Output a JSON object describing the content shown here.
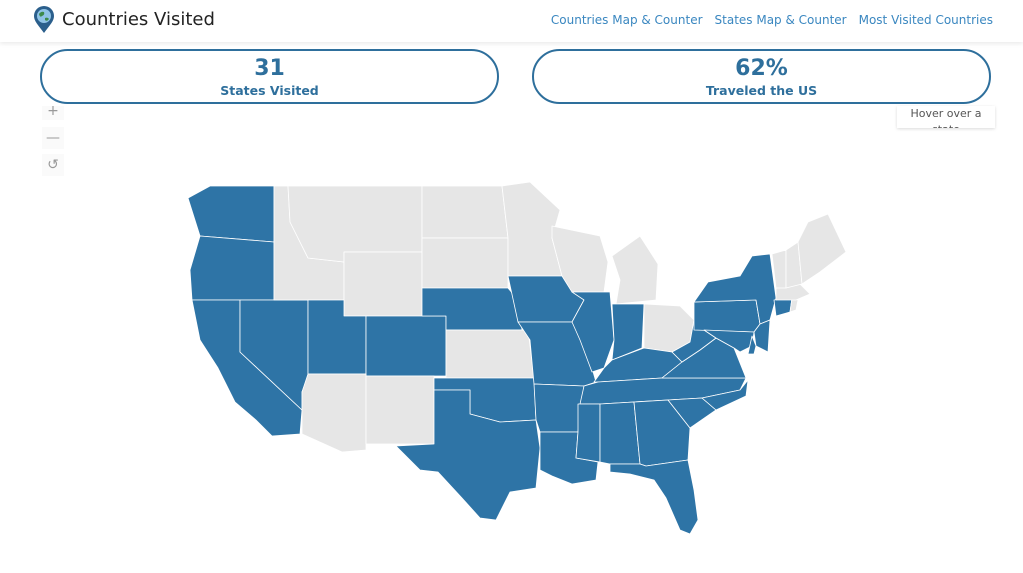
{
  "header": {
    "title": "Countries Visited",
    "nav": [
      "Countries Map & Counter",
      "States Map & Counter",
      "Most Visited Countries"
    ]
  },
  "stats": [
    {
      "value": "31",
      "label": "States Visited"
    },
    {
      "value": "62%",
      "label": "Traveled the US"
    }
  ],
  "map_controls": {
    "zoom_in": "+",
    "zoom_out": "—",
    "reset": "↺"
  },
  "tooltip": "Hover over a state",
  "colors": {
    "visited": "#2e74a6",
    "not_visited": "#e6e6e6",
    "accent": "#2e6f9c",
    "link": "#3a87c0"
  },
  "states": {
    "WA": true,
    "OR": true,
    "CA": true,
    "NV": true,
    "ID": false,
    "MT": false,
    "WY": false,
    "UT": true,
    "CO": true,
    "AZ": false,
    "NM": false,
    "ND": false,
    "SD": false,
    "NE": true,
    "KS": false,
    "OK": true,
    "TX": true,
    "MN": false,
    "IA": true,
    "MO": true,
    "AR": true,
    "LA": true,
    "WI": false,
    "IL": true,
    "MI": false,
    "IN": true,
    "OH": false,
    "KY": true,
    "TN": true,
    "MS": true,
    "AL": true,
    "GA": true,
    "FL": true,
    "SC": true,
    "NC": true,
    "VA": true,
    "WV": true,
    "PA": true,
    "NY": true,
    "NJ": true,
    "DE": true,
    "MD": true,
    "CT": true,
    "RI": false,
    "MA": false,
    "VT": false,
    "NH": false,
    "ME": false
  }
}
